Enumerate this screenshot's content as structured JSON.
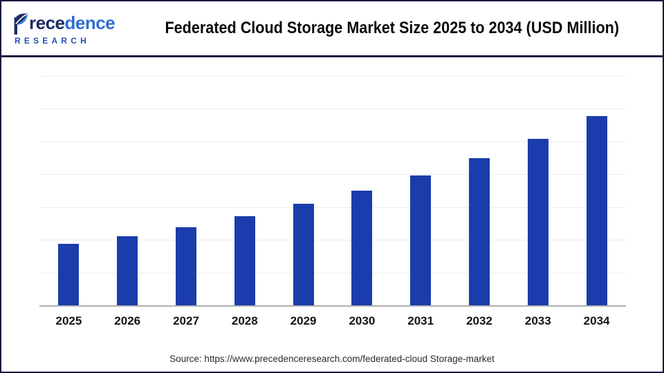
{
  "header": {
    "logo": {
      "name": "Precedence",
      "name_rest_dark": "rece",
      "name_rest_light": "dence",
      "subtitle": "RESEARCH"
    },
    "title": "Federated Cloud Storage Market Size 2025 to 2034 (USD Million)"
  },
  "chart_data": {
    "type": "bar",
    "title": "Federated Cloud Storage Market Size 2025 to 2034 (USD Million)",
    "categories": [
      "2025",
      "2026",
      "2027",
      "2028",
      "2029",
      "2030",
      "2031",
      "2032",
      "2033",
      "2034"
    ],
    "values": [
      32.5,
      36.5,
      41.2,
      47.1,
      53.6,
      60.6,
      68.6,
      77.7,
      88.0,
      100
    ],
    "values_note": "Relative bar heights indexed to 2034 = 100; y-axis carries no numeric tick labels in the image",
    "xlabel": "",
    "ylabel": "",
    "legend": "none",
    "grid": "horizontal",
    "gridline_intervals": 7,
    "bar_color": "#1b3cab",
    "gridline_color": "#ececec",
    "axis_color": "#b0b0b3"
  },
  "footer": {
    "source": "Source: https://www.precedenceresearch.com/federated-cloud Storage-market"
  }
}
